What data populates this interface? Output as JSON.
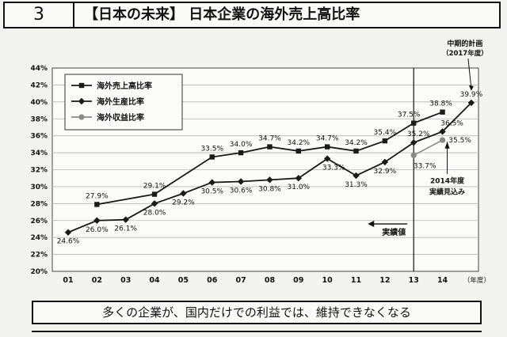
{
  "header": {
    "number": "3",
    "title": "【日本の未来】 日本企業の海外売上高比率"
  },
  "footer": {
    "text": "多くの企業が、国内だけでの利益では、維持できなくなる"
  },
  "colors": {
    "series_sales": "#1a1a1a",
    "series_production": "#1a1a1a",
    "series_profit": "#8a8a8a",
    "grid": "#b8b8b8"
  },
  "chart_data": {
    "type": "line",
    "categories": [
      "01",
      "02",
      "03",
      "04",
      "05",
      "06",
      "07",
      "08",
      "09",
      "10",
      "11",
      "12",
      "13",
      "14"
    ],
    "x_unit": "（年度）",
    "ylim": [
      20,
      44
    ],
    "yticks": [
      "20%",
      "22%",
      "24%",
      "26%",
      "28%",
      "30%",
      "32%",
      "34%",
      "36%",
      "38%",
      "40%",
      "42%",
      "44%"
    ],
    "grid": true,
    "legend_position": "top-left",
    "series": [
      {
        "name": "海外売上高比率",
        "marker": "square",
        "values": [
          null,
          27.9,
          null,
          29.1,
          null,
          33.5,
          34.0,
          34.7,
          34.2,
          34.7,
          34.2,
          35.4,
          37.5,
          38.8
        ],
        "labels": [
          null,
          "27.9%",
          null,
          "29.1%",
          null,
          "33.5%",
          "34.0%",
          "34.7%",
          "34.2%",
          "34.7%",
          "34.2%",
          "35.4%",
          "37.5%",
          "38.8%"
        ]
      },
      {
        "name": "海外生産比率",
        "marker": "diamond",
        "values": [
          24.6,
          26.0,
          26.1,
          28.0,
          29.2,
          30.5,
          30.6,
          30.8,
          31.0,
          33.3,
          31.3,
          32.9,
          35.2,
          36.5
        ],
        "labels": [
          "24.6%",
          "26.0%",
          "26.1%",
          "28.0%",
          "29.2%",
          "30.5%",
          "30.6%",
          "30.8%",
          "31.0%",
          "33.3%",
          "31.3%",
          "32.9%",
          "35.2%",
          "36.5%"
        ]
      },
      {
        "name": "海外収益比率",
        "marker": "circle",
        "values": [
          null,
          null,
          null,
          null,
          null,
          null,
          null,
          null,
          null,
          null,
          null,
          null,
          33.7,
          35.5
        ],
        "labels": [
          null,
          null,
          null,
          null,
          null,
          null,
          null,
          null,
          null,
          null,
          null,
          null,
          "33.7%",
          "35.5%"
        ]
      }
    ],
    "plan_point": {
      "x_index": 14,
      "value": 39.9,
      "label": "39.9%"
    },
    "annotations": {
      "plan_title": "中期的計画",
      "plan_year": "（2017年度）",
      "actual_label": "実績値",
      "forecast_line1": "2014年度",
      "forecast_line2": "実績見込み"
    }
  }
}
